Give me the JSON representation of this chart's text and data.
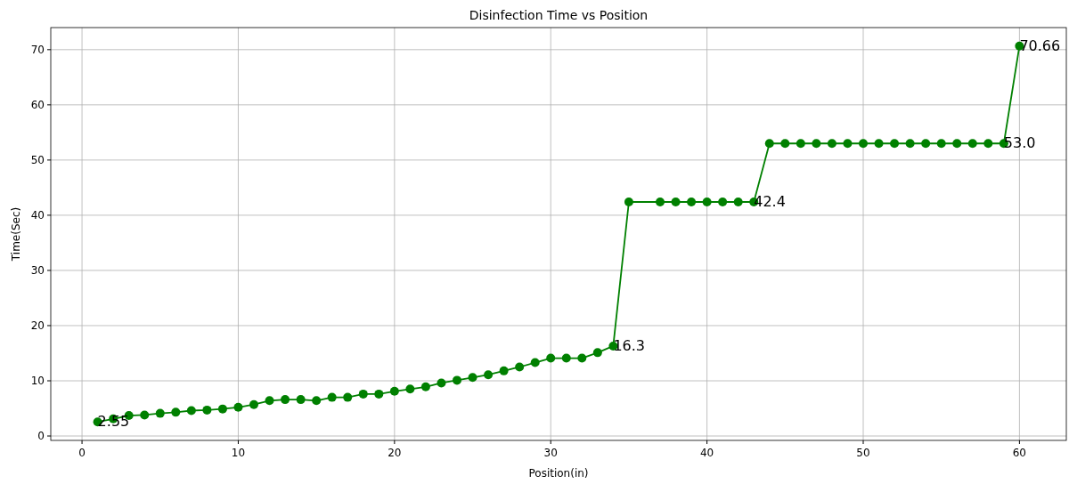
{
  "chart_data": {
    "type": "line",
    "title": "Disinfection Time vs Position",
    "xlabel": "Position(in)",
    "ylabel": "Time(Sec)",
    "x": [
      1,
      2,
      3,
      4,
      5,
      6,
      7,
      8,
      9,
      10,
      11,
      12,
      13,
      14,
      15,
      16,
      17,
      18,
      19,
      20,
      21,
      22,
      23,
      24,
      25,
      26,
      27,
      28,
      29,
      30,
      31,
      32,
      33,
      34,
      35,
      37,
      38,
      39,
      40,
      41,
      42,
      43,
      44,
      45,
      46,
      47,
      48,
      49,
      50,
      51,
      52,
      53,
      54,
      55,
      56,
      57,
      58,
      59,
      60
    ],
    "series": [
      {
        "color": "#008000",
        "values": [
          2.55,
          3.1,
          3.7,
          3.8,
          4.1,
          4.3,
          4.6,
          4.7,
          4.9,
          5.2,
          5.7,
          6.4,
          6.6,
          6.6,
          6.4,
          7.0,
          7.0,
          7.6,
          7.6,
          8.1,
          8.5,
          8.9,
          9.6,
          10.1,
          10.6,
          11.1,
          11.8,
          12.5,
          13.3,
          14.1,
          14.1,
          14.1,
          15.1,
          16.3,
          42.4,
          42.4,
          42.4,
          42.4,
          42.4,
          42.4,
          42.4,
          42.4,
          53.0,
          53.0,
          53.0,
          53.0,
          53.0,
          53.0,
          53.0,
          53.0,
          53.0,
          53.0,
          53.0,
          53.0,
          53.0,
          53.0,
          53.0,
          53.0,
          70.66
        ],
        "value_labels": [
          "2.55",
          null,
          null,
          null,
          null,
          null,
          null,
          null,
          null,
          null,
          null,
          null,
          null,
          null,
          null,
          null,
          null,
          null,
          null,
          null,
          null,
          null,
          null,
          null,
          null,
          null,
          null,
          null,
          null,
          null,
          null,
          null,
          null,
          "16.3",
          null,
          null,
          null,
          null,
          null,
          null,
          null,
          "42.4",
          null,
          null,
          null,
          null,
          null,
          null,
          null,
          null,
          null,
          null,
          null,
          null,
          null,
          null,
          null,
          "53.0",
          "70.66"
        ]
      }
    ],
    "xlim": [
      -2,
      63
    ],
    "xticks": [
      0,
      10,
      20,
      30,
      40,
      50,
      60
    ],
    "ylim": [
      -0.8,
      74
    ],
    "yticks": [
      0,
      10,
      20,
      30,
      40,
      50,
      60,
      70
    ],
    "grid": true,
    "marker": "circle",
    "line_style": "solid"
  }
}
